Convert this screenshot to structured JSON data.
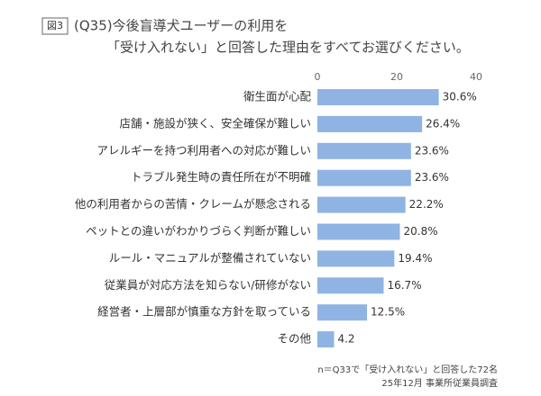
{
  "chart_data": {
    "type": "bar",
    "orientation": "horizontal",
    "figure_label": "図3",
    "title": "(Q35)今後盲導犬ユーザーの利用を",
    "subtitle": "「受け入れない」と回答した理由をすべてお選びください。",
    "categories": [
      "衛生面が心配",
      "店舗・施設が狭く、安全確保が難しい",
      "アレルギーを持つ利用者への対応が難しい",
      "トラブル発生時の責任所在が不明確",
      "他の利用者からの苦情・クレームが懸念される",
      "ペットとの違いがわかりづらく判断が難しい",
      "ルール・マニュアルが整備されていない",
      "従業員が対応方法を知らない/研修がない",
      "経営者・上層部が慎重な方針を取っている",
      "その他"
    ],
    "values": [
      30.6,
      26.4,
      23.6,
      23.6,
      22.2,
      20.8,
      19.4,
      16.7,
      12.5,
      4.2
    ],
    "value_labels": [
      "30.6%",
      "26.4%",
      "23.6%",
      "23.6%",
      "22.2%",
      "20.8%",
      "19.4%",
      "16.7%",
      "12.5%",
      "4.2"
    ],
    "color": "#8fb4e3",
    "xlim": [
      0,
      40
    ],
    "xticks": [
      0,
      20,
      40
    ],
    "grid": false,
    "notes": [
      "n＝Q33で「受け入れない」と回答した72名",
      "25年12月 事業所従業員調査"
    ]
  }
}
